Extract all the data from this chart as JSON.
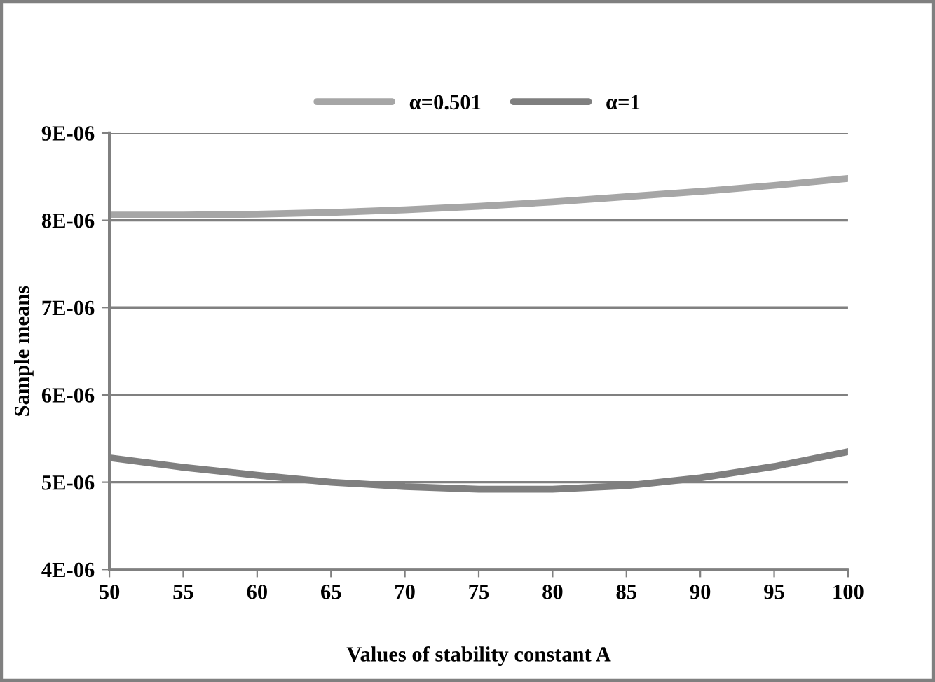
{
  "chart_data": {
    "type": "line",
    "xlabel": "Values of stability constant A",
    "ylabel": "Sample means",
    "x": [
      50,
      55,
      60,
      65,
      70,
      75,
      80,
      85,
      90,
      95,
      100
    ],
    "series": [
      {
        "name": "α=0.501",
        "color": "#a6a6a6",
        "values": [
          8.06e-06,
          8.06e-06,
          8.07e-06,
          8.09e-06,
          8.12e-06,
          8.16e-06,
          8.21e-06,
          8.27e-06,
          8.33e-06,
          8.4e-06,
          8.48e-06
        ]
      },
      {
        "name": "α=1",
        "color": "#7f7f7f",
        "values": [
          5.28e-06,
          5.17e-06,
          5.08e-06,
          5e-06,
          4.95e-06,
          4.92e-06,
          4.92e-06,
          4.96e-06,
          5.05e-06,
          5.18e-06,
          5.35e-06
        ]
      }
    ],
    "xlim": [
      50,
      100
    ],
    "xticks": [
      50,
      55,
      60,
      65,
      70,
      75,
      80,
      85,
      90,
      95,
      100
    ],
    "ylim": [
      4e-06,
      9e-06
    ],
    "yticks": [
      {
        "value": 4e-06,
        "label": "4E-06"
      },
      {
        "value": 5e-06,
        "label": "5E-06"
      },
      {
        "value": 6e-06,
        "label": "6E-06"
      },
      {
        "value": 7e-06,
        "label": "7E-06"
      },
      {
        "value": 8e-06,
        "label": "8E-06"
      },
      {
        "value": 9e-06,
        "label": "9E-06"
      }
    ],
    "grid": "y",
    "legend": "top",
    "marker": "none",
    "line_style": "solid"
  }
}
